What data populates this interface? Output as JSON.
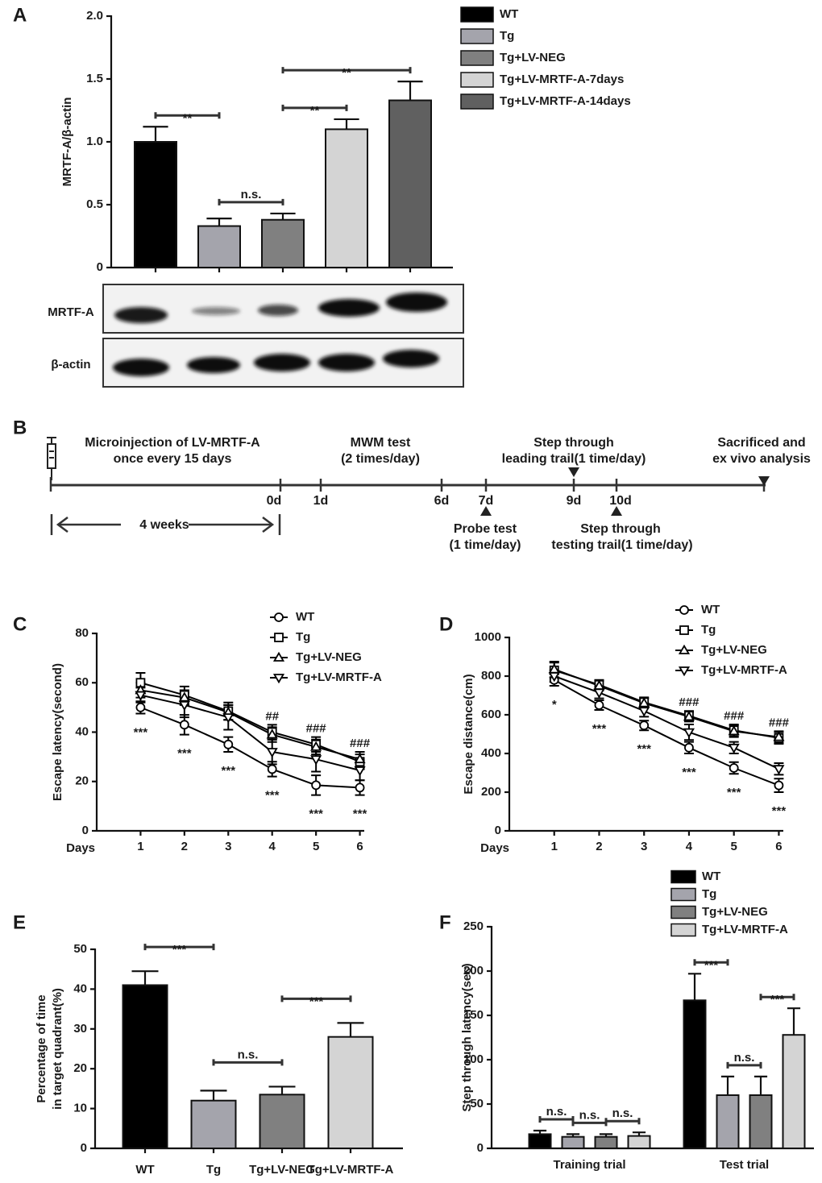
{
  "chart_data": [
    {
      "type": "bar",
      "panel": "A",
      "ylabel": "MRTF-A/β-actin",
      "ylim": [
        0,
        2
      ],
      "yticks": [
        0,
        0.5,
        {
          "value": 1,
          "label": "1.0"
        },
        1.5,
        {
          "value": 2,
          "label": "2.0"
        }
      ],
      "series": [
        {
          "name": "WT",
          "color": "#000000",
          "values": [
            1.0
          ],
          "errors": [
            0.12
          ]
        },
        {
          "name": "Tg",
          "color": "#a4a4ac",
          "values": [
            0.33
          ],
          "errors": [
            0.06
          ]
        },
        {
          "name": "Tg+LV-NEG",
          "color": "#808080",
          "values": [
            0.38
          ],
          "errors": [
            0.05
          ]
        },
        {
          "name": "Tg+LV-MRTF-A-7days",
          "color": "#d4d4d4",
          "values": [
            1.1
          ],
          "errors": [
            0.08
          ]
        },
        {
          "name": "Tg+LV-MRTF-A-14days",
          "color": "#606060",
          "values": [
            1.33
          ],
          "errors": [
            0.15
          ]
        }
      ],
      "annotations": [
        {
          "text": "**",
          "between": [
            0,
            1
          ]
        },
        {
          "text": "n.s.",
          "between": [
            1,
            2
          ]
        },
        {
          "text": "**",
          "between": [
            2,
            3
          ]
        },
        {
          "text": "**",
          "between": [
            2,
            4
          ]
        }
      ],
      "blot_rows": [
        "MRTF-A",
        "β-actin"
      ]
    },
    {
      "type": "line",
      "panel": "C",
      "xlabel": "Days",
      "ylabel": "Escape latency(second)",
      "x": [
        1,
        2,
        3,
        4,
        5,
        6
      ],
      "xlim": [
        0,
        6.1
      ],
      "xticks": [
        1,
        2,
        3,
        4,
        5,
        6
      ],
      "ylim": [
        0,
        80
      ],
      "yticks": [
        0,
        20,
        40,
        60,
        80
      ],
      "series": [
        {
          "name": "WT",
          "color": "#000000",
          "marker": "circle",
          "values": [
            50,
            43,
            35,
            25,
            18.5,
            17.5
          ],
          "errors": [
            2.5,
            4,
            3,
            3,
            4,
            3
          ]
        },
        {
          "name": "Tg",
          "color": "#000000",
          "marker": "square",
          "values": [
            60,
            55,
            48.5,
            40,
            35,
            28
          ],
          "errors": [
            4,
            3.5,
            3.5,
            3,
            3,
            3
          ]
        },
        {
          "name": "Tg+LV-NEG",
          "color": "#000000",
          "marker": "triangle-up",
          "values": [
            57,
            54,
            48,
            39,
            34,
            29
          ],
          "errors": [
            3,
            3,
            3,
            3,
            3,
            3
          ]
        },
        {
          "name": "Tg+LV-MRTF-A",
          "color": "#000000",
          "marker": "triangle-down",
          "values": [
            55,
            51,
            46,
            32,
            29,
            24.5
          ],
          "errors": [
            3,
            5,
            5,
            5,
            5,
            4
          ]
        }
      ],
      "annotations_below": [
        {
          "x": 1,
          "text": "***"
        },
        {
          "x": 2,
          "text": "***"
        },
        {
          "x": 3,
          "text": "***"
        },
        {
          "x": 4,
          "text": "***"
        },
        {
          "x": 5,
          "text": "***"
        },
        {
          "x": 6,
          "text": "***"
        }
      ],
      "annotations_above": [
        {
          "x": 4,
          "text": "##"
        },
        {
          "x": 5,
          "text": "###"
        },
        {
          "x": 6,
          "text": "###"
        }
      ]
    },
    {
      "type": "line",
      "panel": "D",
      "xlabel": "Days",
      "ylabel": "Escape distance(cm)",
      "x": [
        1,
        2,
        3,
        4,
        5,
        6
      ],
      "xlim": [
        0,
        6.1
      ],
      "xticks": [
        1,
        2,
        3,
        4,
        5,
        6
      ],
      "ylim": [
        0,
        1000
      ],
      "yticks": [
        0,
        200,
        400,
        600,
        800,
        1000
      ],
      "series": [
        {
          "name": "WT",
          "color": "#000000",
          "marker": "circle",
          "values": [
            780,
            650,
            545,
            430,
            325,
            235
          ],
          "errors": [
            30,
            25,
            25,
            30,
            30,
            35
          ]
        },
        {
          "name": "Tg",
          "color": "#000000",
          "marker": "square",
          "values": [
            830,
            755,
            665,
            595,
            520,
            480
          ],
          "errors": [
            40,
            25,
            25,
            25,
            30,
            30
          ]
        },
        {
          "name": "Tg+LV-NEG",
          "color": "#000000",
          "marker": "triangle-up",
          "values": [
            835,
            750,
            660,
            590,
            515,
            485
          ],
          "errors": [
            40,
            25,
            25,
            25,
            30,
            30
          ]
        },
        {
          "name": "Tg+LV-MRTF-A",
          "color": "#000000",
          "marker": "triangle-down",
          "values": [
            800,
            715,
            620,
            510,
            430,
            320
          ],
          "errors": [
            30,
            30,
            30,
            40,
            30,
            30
          ]
        }
      ],
      "annotations_below": [
        {
          "x": 1,
          "text": "*"
        },
        {
          "x": 2,
          "text": "***"
        },
        {
          "x": 3,
          "text": "***"
        },
        {
          "x": 4,
          "text": "***"
        },
        {
          "x": 5,
          "text": "***"
        },
        {
          "x": 6,
          "text": "***"
        }
      ],
      "annotations_above": [
        {
          "x": 4,
          "text": "###"
        },
        {
          "x": 5,
          "text": "###"
        },
        {
          "x": 6,
          "text": "###"
        }
      ]
    },
    {
      "type": "bar",
      "panel": "E",
      "ylabel": [
        "Percentage of time",
        "in target quadrant(%)"
      ],
      "categories": [
        "WT",
        "Tg",
        "Tg+LV-NEG",
        "Tg+LV-MRTF-A"
      ],
      "values": [
        41,
        12,
        13.5,
        28
      ],
      "errors": [
        3.5,
        2.5,
        2,
        3.5
      ],
      "colors": [
        "#000000",
        "#a4a4ac",
        "#808080",
        "#d4d4d4"
      ],
      "ylim": [
        0,
        50
      ],
      "yticks": [
        0,
        10,
        20,
        30,
        40,
        50
      ],
      "annotations": [
        {
          "text": "***",
          "between": [
            0,
            1
          ]
        },
        {
          "text": "n.s.",
          "between": [
            1,
            2
          ]
        },
        {
          "text": "***",
          "between": [
            2,
            3
          ]
        }
      ]
    },
    {
      "type": "bar",
      "panel": "F",
      "ylabel": "Step through latency(sec)",
      "categories": [
        "Training trial",
        "Test trial"
      ],
      "series": [
        {
          "name": "WT",
          "color": "#000000",
          "values": [
            16,
            167
          ],
          "errors": [
            4,
            30
          ]
        },
        {
          "name": "Tg",
          "color": "#a4a4ac",
          "values": [
            13,
            60
          ],
          "errors": [
            3,
            21
          ]
        },
        {
          "name": "Tg+LV-NEG",
          "color": "#808080",
          "values": [
            13,
            60
          ],
          "errors": [
            3,
            21
          ]
        },
        {
          "name": "Tg+LV-MRTF-A",
          "color": "#d4d4d4",
          "values": [
            14,
            128
          ],
          "errors": [
            4,
            30
          ]
        }
      ],
      "ylim": [
        0,
        250
      ],
      "yticks": [
        0,
        50,
        100,
        150,
        200,
        250
      ],
      "annotations": [
        {
          "category": 0,
          "text": "n.s.",
          "between": [
            0,
            1
          ]
        },
        {
          "category": 0,
          "text": "n.s.",
          "between": [
            1,
            2
          ]
        },
        {
          "category": 0,
          "text": "n.s.",
          "between": [
            2,
            3
          ]
        },
        {
          "category": 1,
          "text": "***",
          "between": [
            0,
            1
          ]
        },
        {
          "category": 1,
          "text": "n.s.",
          "between": [
            1,
            2
          ]
        },
        {
          "category": 1,
          "text": "***",
          "between": [
            2,
            3
          ]
        }
      ]
    }
  ],
  "timeline": {
    "panel": "B",
    "labels_above": [
      [
        "Microinjection of LV-MRTF-A",
        "once every 15 days"
      ],
      [
        "MWM test",
        "(2 times/day)"
      ],
      [
        "Step through",
        "leading trail(1 time/day)"
      ],
      [
        "Sacrificed and",
        "ex vivo analysis"
      ]
    ],
    "ticks": [
      "0d",
      "1d",
      "6d",
      "7d",
      "9d",
      "10d"
    ],
    "span_label": "4 weeks",
    "labels_below": [
      [
        "Probe test",
        "(1 time/day)"
      ],
      [
        "Step through",
        "testing trail(1 time/day)"
      ]
    ]
  }
}
